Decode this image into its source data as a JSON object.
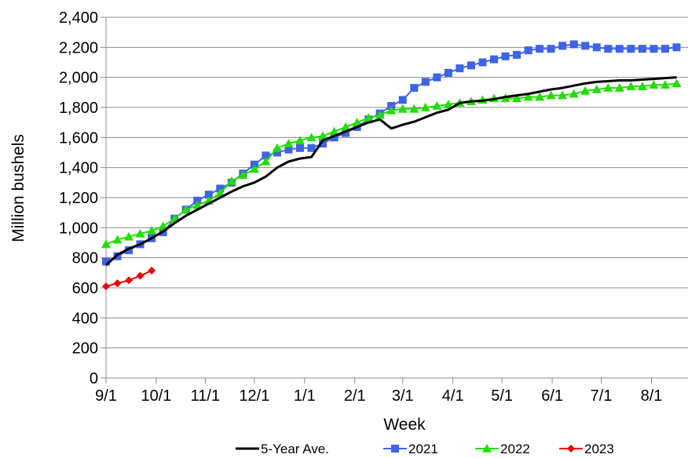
{
  "chart_data": {
    "type": "line",
    "xlabel": "Week",
    "ylabel": "Million bushels",
    "ylim": [
      0,
      2400
    ],
    "yticks": [
      0,
      200,
      400,
      600,
      800,
      1000,
      1200,
      1400,
      1600,
      1800,
      2000,
      2200,
      2400
    ],
    "ytick_labels": [
      "0",
      "200",
      "400",
      "600",
      "800",
      "1,000",
      "1,200",
      "1,400",
      "1,600",
      "1,800",
      "2,000",
      "2,200",
      "2,400"
    ],
    "xlim": [
      0,
      51
    ],
    "xtick_weeks": [
      0,
      4.4,
      8.7,
      13,
      17.4,
      21.8,
      26,
      30.4,
      34.7,
      39.1,
      43.4,
      47.8
    ],
    "xtick_labels": [
      "9/1",
      "10/1",
      "11/1",
      "12/1",
      "1/1",
      "2/1",
      "3/1",
      "4/1",
      "5/1",
      "6/1",
      "7/1",
      "8/1"
    ],
    "grid": "horizontal",
    "legend_position": "bottom",
    "series": [
      {
        "name": "5-Year Ave.",
        "color": "#000000",
        "marker": "none",
        "values": [
          750,
          820,
          860,
          890,
          930,
          975,
          1030,
          1080,
          1120,
          1160,
          1200,
          1240,
          1275,
          1300,
          1340,
          1400,
          1440,
          1460,
          1470,
          1580,
          1610,
          1640,
          1670,
          1700,
          1720,
          1660,
          1685,
          1705,
          1735,
          1765,
          1785,
          1830,
          1840,
          1845,
          1855,
          1870,
          1880,
          1890,
          1905,
          1920,
          1930,
          1945,
          1960,
          1970,
          1975,
          1980,
          1980,
          1985,
          1990,
          1995,
          2000
        ]
      },
      {
        "name": "2021",
        "color": "#3d63e6",
        "marker": "square",
        "values": [
          775,
          810,
          850,
          890,
          930,
          970,
          1060,
          1120,
          1180,
          1220,
          1260,
          1300,
          1360,
          1420,
          1480,
          1500,
          1520,
          1530,
          1530,
          1560,
          1600,
          1630,
          1670,
          1720,
          1760,
          1810,
          1850,
          1930,
          1970,
          2000,
          2030,
          2060,
          2080,
          2100,
          2120,
          2140,
          2150,
          2180,
          2190,
          2190,
          2210,
          2220,
          2210,
          2200,
          2190,
          2190,
          2190,
          2190,
          2190,
          2190,
          2200
        ]
      },
      {
        "name": "2022",
        "color": "#22dd00",
        "marker": "triangle",
        "values": [
          890,
          920,
          940,
          960,
          980,
          1010,
          1060,
          1120,
          1150,
          1180,
          1230,
          1310,
          1350,
          1390,
          1440,
          1530,
          1560,
          1580,
          1600,
          1610,
          1640,
          1670,
          1700,
          1730,
          1750,
          1780,
          1790,
          1790,
          1800,
          1810,
          1820,
          1830,
          1840,
          1850,
          1860,
          1860,
          1860,
          1870,
          1870,
          1880,
          1880,
          1890,
          1910,
          1920,
          1930,
          1930,
          1940,
          1940,
          1950,
          1950,
          1960
        ]
      },
      {
        "name": "2023",
        "color": "#ee0000",
        "marker": "diamond",
        "values": [
          610,
          630,
          650,
          680,
          715
        ]
      }
    ]
  }
}
